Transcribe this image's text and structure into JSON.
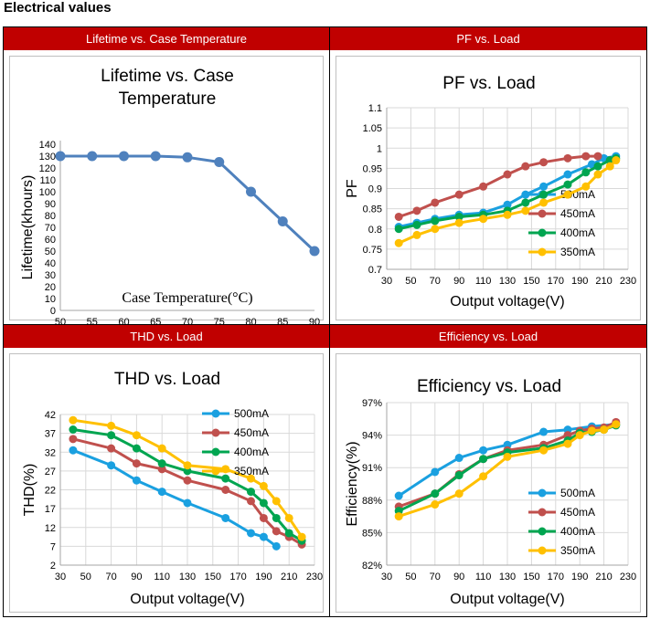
{
  "page": {
    "title": "Electrical values"
  },
  "panels": [
    {
      "header": "Lifetime vs. Case Temperature"
    },
    {
      "header": "PF vs. Load"
    },
    {
      "header": "THD vs. Load"
    },
    {
      "header": "Efficiency vs. Load"
    }
  ],
  "chart_data": [
    {
      "id": "lifetime",
      "type": "line",
      "title": [
        "Lifetime vs. Case",
        "Temperature"
      ],
      "xlabel": "Case Temperature(°C)",
      "ylabel": "Lifetime(khours)",
      "xlim": [
        50,
        90
      ],
      "ylim": [
        0,
        140
      ],
      "xticks": [
        50,
        55,
        60,
        65,
        70,
        75,
        80,
        85,
        90
      ],
      "yticks": [
        0,
        10,
        20,
        30,
        40,
        50,
        60,
        70,
        80,
        90,
        100,
        110,
        120,
        130,
        140
      ],
      "grid": false,
      "series": [
        {
          "color": "#4f81bd",
          "x": [
            50,
            55,
            60,
            65,
            70,
            75,
            80,
            85,
            90
          ],
          "y": [
            130,
            130,
            130,
            130,
            129,
            125,
            100,
            75,
            50
          ]
        }
      ]
    },
    {
      "id": "pf",
      "type": "line",
      "title": [
        "PF vs. Load"
      ],
      "xlabel": "Output voltage(V)",
      "ylabel": "PF",
      "xlim": [
        30,
        230
      ],
      "ylim": [
        0.7,
        1.1
      ],
      "xticks": [
        30,
        50,
        70,
        90,
        110,
        130,
        150,
        170,
        190,
        210,
        230
      ],
      "yticks": [
        0.7,
        0.75,
        0.8,
        0.85,
        0.9,
        0.95,
        1,
        1.05,
        1.1
      ],
      "ytick_labels": [
        "0.7",
        "0.75",
        "0.8",
        "0.85",
        "0.9",
        "0.95",
        "1",
        "1.05",
        "1.1"
      ],
      "grid": true,
      "legend": "right",
      "series": [
        {
          "name": "500mA",
          "color": "#1aa0e0",
          "x": [
            40,
            55,
            70,
            90,
            110,
            130,
            145,
            160,
            180,
            200,
            210,
            220
          ],
          "y": [
            0.805,
            0.815,
            0.825,
            0.835,
            0.84,
            0.86,
            0.885,
            0.905,
            0.935,
            0.96,
            0.975,
            0.98
          ]
        },
        {
          "name": "450mA",
          "color": "#c0504d",
          "x": [
            40,
            55,
            70,
            90,
            110,
            130,
            145,
            160,
            180,
            195,
            205
          ],
          "y": [
            0.83,
            0.845,
            0.865,
            0.885,
            0.905,
            0.935,
            0.955,
            0.965,
            0.975,
            0.98,
            0.98
          ]
        },
        {
          "name": "400mA",
          "color": "#00a550",
          "x": [
            40,
            55,
            70,
            90,
            110,
            130,
            145,
            160,
            180,
            195,
            205,
            215,
            220
          ],
          "y": [
            0.8,
            0.81,
            0.82,
            0.83,
            0.835,
            0.845,
            0.865,
            0.885,
            0.91,
            0.94,
            0.955,
            0.97,
            0.975
          ]
        },
        {
          "name": "350mA",
          "color": "#ffc000",
          "x": [
            40,
            55,
            70,
            90,
            110,
            130,
            145,
            160,
            180,
            195,
            205,
            215,
            220
          ],
          "y": [
            0.765,
            0.785,
            0.8,
            0.815,
            0.825,
            0.835,
            0.845,
            0.865,
            0.885,
            0.905,
            0.935,
            0.955,
            0.97
          ]
        }
      ]
    },
    {
      "id": "thd",
      "type": "line",
      "title": [
        "THD vs. Load"
      ],
      "xlabel": "Output voltage(V)",
      "ylabel": "THD(%)",
      "xlim": [
        30,
        230
      ],
      "ylim": [
        2,
        42
      ],
      "xticks": [
        30,
        50,
        70,
        90,
        110,
        130,
        150,
        170,
        190,
        210,
        230
      ],
      "yticks": [
        2,
        7,
        12,
        17,
        22,
        27,
        32,
        37,
        42
      ],
      "grid": true,
      "legend": "top-right",
      "series": [
        {
          "name": "500mA",
          "color": "#1aa0e0",
          "x": [
            40,
            70,
            90,
            110,
            130,
            160,
            180,
            190,
            200
          ],
          "y": [
            32.5,
            28.5,
            24.5,
            21.5,
            18.5,
            14.5,
            10.5,
            9.5,
            7
          ]
        },
        {
          "name": "450mA",
          "color": "#c0504d",
          "x": [
            40,
            70,
            90,
            110,
            130,
            160,
            180,
            190,
            200,
            210,
            220
          ],
          "y": [
            35.5,
            33,
            29,
            27.5,
            24.5,
            22,
            19,
            14.5,
            11,
            9.5,
            7.5
          ]
        },
        {
          "name": "400mA",
          "color": "#00a550",
          "x": [
            40,
            70,
            90,
            110,
            130,
            160,
            180,
            190,
            200,
            210,
            220
          ],
          "y": [
            38,
            36.5,
            33,
            29,
            27,
            25,
            21.5,
            18.5,
            14.5,
            10.5,
            8.5
          ]
        },
        {
          "name": "350mA",
          "color": "#ffc000",
          "x": [
            40,
            70,
            90,
            110,
            130,
            160,
            180,
            190,
            200,
            210,
            220
          ],
          "y": [
            40.5,
            39,
            36.5,
            33,
            28.5,
            27.5,
            25,
            23,
            19,
            14.5,
            9.5
          ]
        }
      ]
    },
    {
      "id": "efficiency",
      "type": "line",
      "title": [
        "Efficiency vs. Load"
      ],
      "xlabel": "Output voltage(V)",
      "ylabel": "Efficiency(%)",
      "xlim": [
        30,
        230
      ],
      "ylim": [
        82,
        97
      ],
      "xticks": [
        30,
        50,
        70,
        90,
        110,
        130,
        150,
        170,
        190,
        210,
        230
      ],
      "yticks": [
        82,
        85,
        88,
        91,
        94,
        97
      ],
      "ytick_labels": [
        "82%",
        "85%",
        "88%",
        "91%",
        "94%",
        "97%"
      ],
      "grid": true,
      "legend": "bottom-right",
      "series": [
        {
          "name": "500mA",
          "color": "#1aa0e0",
          "x": [
            40,
            70,
            90,
            110,
            130,
            160,
            180,
            200,
            220
          ],
          "y": [
            88.4,
            90.6,
            91.9,
            92.6,
            93.1,
            94.3,
            94.5,
            94.8,
            95
          ]
        },
        {
          "name": "450mA",
          "color": "#c0504d",
          "x": [
            40,
            70,
            90,
            110,
            130,
            160,
            180,
            190,
            200,
            210,
            220
          ],
          "y": [
            87.4,
            88.6,
            90.4,
            91.8,
            92.6,
            93.1,
            94,
            94.4,
            94.6,
            94.7,
            95.2
          ]
        },
        {
          "name": "400mA",
          "color": "#00a550",
          "x": [
            40,
            70,
            90,
            110,
            130,
            160,
            180,
            190,
            200,
            210,
            220
          ],
          "y": [
            87,
            88.6,
            90.3,
            91.8,
            92.4,
            92.8,
            93.5,
            94.2,
            94.3,
            94.5,
            94.9
          ]
        },
        {
          "name": "350mA",
          "color": "#ffc000",
          "x": [
            40,
            70,
            90,
            110,
            130,
            160,
            180,
            190,
            200,
            210,
            220
          ],
          "y": [
            86.5,
            87.6,
            88.6,
            90.2,
            92,
            92.6,
            93.2,
            94,
            94.4,
            94.5,
            95
          ]
        }
      ]
    }
  ]
}
